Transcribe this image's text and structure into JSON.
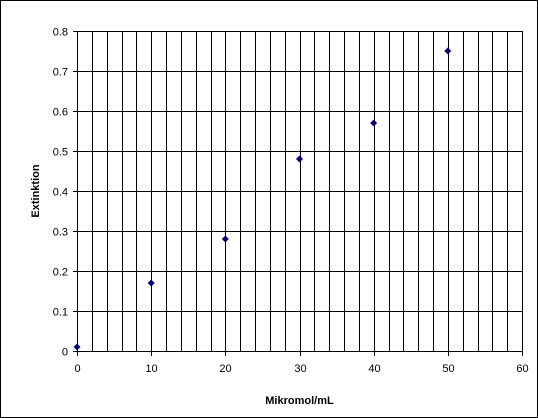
{
  "chart_data": {
    "type": "scatter",
    "title": "",
    "xlabel": "Mikromol/mL",
    "ylabel": "Extinktion",
    "xlim": [
      0,
      60
    ],
    "ylim": [
      0,
      0.8
    ],
    "x_ticks": [
      0,
      10,
      20,
      30,
      40,
      50,
      60
    ],
    "x_tick_labels": [
      "0",
      "10",
      "20",
      "30",
      "40",
      "50",
      "60"
    ],
    "y_ticks": [
      0,
      0.1,
      0.2,
      0.3,
      0.4,
      0.5,
      0.6,
      0.7,
      0.8
    ],
    "y_tick_labels": [
      "0",
      "0.1",
      "0.2",
      "0.3",
      "0.4",
      "0.5",
      "0.6",
      "0.7",
      "0.8"
    ],
    "x_minor_grid_step": 2,
    "grid": true,
    "legend": "none",
    "marker": "diamond",
    "marker_color": "#000080",
    "series": [
      {
        "x": [
          0,
          10,
          20,
          30,
          40,
          50
        ],
        "y": [
          0.01,
          0.17,
          0.28,
          0.48,
          0.57,
          0.75
        ]
      }
    ]
  }
}
